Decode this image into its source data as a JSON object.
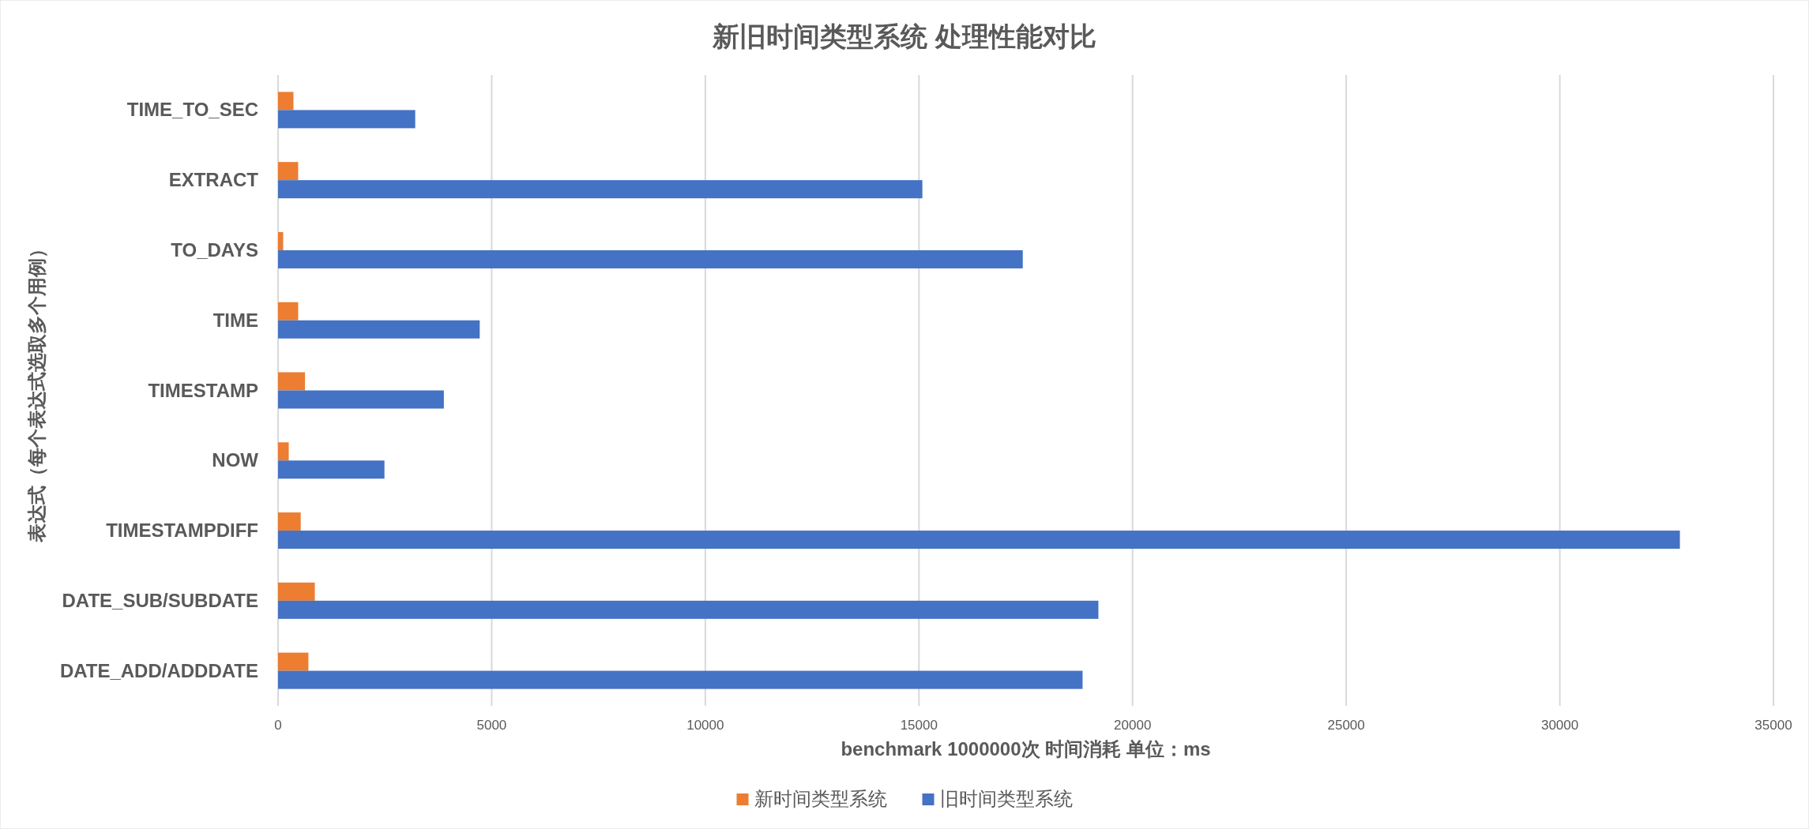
{
  "chart_data": {
    "type": "bar",
    "orientation": "horizontal",
    "title": "新旧时间类型系统 处理性能对比",
    "xlabel": "benchmark 1000000次 时间消耗 单位：ms",
    "ylabel": "表达式（每个表达式选取多个用例）",
    "categories": [
      "TIME_TO_SEC",
      "EXTRACT",
      "TO_DAYS",
      "TIME",
      "TIMESTAMP",
      "NOW",
      "TIMESTAMPDIFF",
      "DATE_SUB/SUBDATE",
      "DATE_ADD/ADDDATE"
    ],
    "series": [
      {
        "name": "新时间类型系统",
        "color": "#ed7d31",
        "values": [
          360,
          470,
          120,
          470,
          630,
          250,
          530,
          860,
          710
        ]
      },
      {
        "name": "旧时间类型系统",
        "color": "#4472c4",
        "values": [
          3210,
          15080,
          17430,
          4720,
          3880,
          2490,
          32810,
          19200,
          18830
        ]
      }
    ],
    "xlim": [
      0,
      35000
    ],
    "xticks": [
      0,
      5000,
      10000,
      15000,
      20000,
      25000,
      30000,
      35000
    ],
    "grid": "x",
    "legend": "bottom"
  }
}
